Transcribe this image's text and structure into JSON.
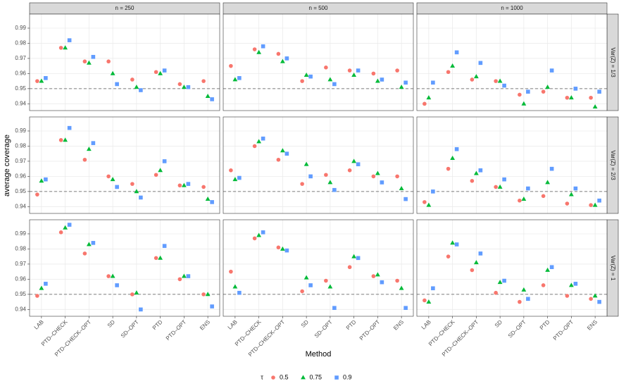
{
  "chart_data": {
    "type": "scatter",
    "xlabel": "Method",
    "ylabel": "average coverage",
    "legend_title": "τ",
    "categories": [
      "LAB",
      "PTD–CHECK",
      "PTD–CHECK–OPT",
      "SD",
      "SD–OPT",
      "PTD",
      "PTD–OPT",
      "ENS"
    ],
    "series": [
      {
        "name": "0.5",
        "color": "#F8766D",
        "marker": "circle"
      },
      {
        "name": "0.75",
        "color": "#00BA38",
        "marker": "triangle"
      },
      {
        "name": "0.9",
        "color": "#619CFF",
        "marker": "square"
      }
    ],
    "ylim": [
      0.9355,
      0.9993
    ],
    "yticks": [
      0.94,
      0.95,
      0.96,
      0.97,
      0.98,
      0.99
    ],
    "hline": 0.95,
    "grid": true,
    "columns": [
      "n = 250",
      "n = 500",
      "n = 1000"
    ],
    "rows": [
      {
        "label": "Var(Z) = 1/3",
        "panels": [
          {
            "series": [
              {
                "values": [
                  0.955,
                  0.977,
                  0.968,
                  0.968,
                  0.956,
                  0.961,
                  0.953,
                  0.955
                ]
              },
              {
                "values": [
                  0.955,
                  0.977,
                  0.967,
                  0.96,
                  0.951,
                  0.96,
                  0.951,
                  0.945
                ]
              },
              {
                "values": [
                  0.957,
                  0.982,
                  0.971,
                  0.953,
                  0.949,
                  0.962,
                  0.951,
                  0.943
                ]
              }
            ]
          },
          {
            "series": [
              {
                "values": [
                  0.965,
                  0.976,
                  0.973,
                  0.955,
                  0.964,
                  0.962,
                  0.96,
                  0.962
                ]
              },
              {
                "values": [
                  0.956,
                  0.974,
                  0.968,
                  0.959,
                  0.956,
                  0.959,
                  0.955,
                  0.951
                ]
              },
              {
                "values": [
                  0.957,
                  0.978,
                  0.97,
                  0.958,
                  0.953,
                  0.962,
                  0.956,
                  0.954
                ]
              }
            ]
          },
          {
            "series": [
              {
                "values": [
                  0.94,
                  0.961,
                  0.956,
                  0.955,
                  0.946,
                  0.948,
                  0.944,
                  0.944
                ]
              },
              {
                "values": [
                  0.944,
                  0.965,
                  0.958,
                  0.955,
                  0.94,
                  0.951,
                  0.944,
                  0.938
                ]
              },
              {
                "values": [
                  0.954,
                  0.974,
                  0.967,
                  0.952,
                  0.948,
                  0.962,
                  0.95,
                  0.948
                ]
              }
            ]
          }
        ]
      },
      {
        "label": "Var(Z) = 2/3",
        "panels": [
          {
            "series": [
              {
                "values": [
                  0.948,
                  0.984,
                  0.971,
                  0.96,
                  0.955,
                  0.961,
                  0.954,
                  0.953
                ]
              },
              {
                "values": [
                  0.957,
                  0.984,
                  0.978,
                  0.958,
                  0.95,
                  0.964,
                  0.954,
                  0.945
                ]
              },
              {
                "values": [
                  0.958,
                  0.992,
                  0.982,
                  0.953,
                  0.946,
                  0.97,
                  0.955,
                  0.943
                ]
              }
            ]
          },
          {
            "series": [
              {
                "values": [
                  0.964,
                  0.98,
                  0.971,
                  0.955,
                  0.961,
                  0.964,
                  0.96,
                  0.96
                ]
              },
              {
                "values": [
                  0.958,
                  0.983,
                  0.977,
                  0.968,
                  0.956,
                  0.97,
                  0.962,
                  0.952
                ]
              },
              {
                "values": [
                  0.959,
                  0.985,
                  0.975,
                  0.96,
                  0.951,
                  0.968,
                  0.956,
                  0.945
                ]
              }
            ]
          },
          {
            "series": [
              {
                "values": [
                  0.943,
                  0.965,
                  0.957,
                  0.953,
                  0.944,
                  0.947,
                  0.942,
                  0.941
                ]
              },
              {
                "values": [
                  0.941,
                  0.972,
                  0.962,
                  0.953,
                  0.945,
                  0.956,
                  0.948,
                  0.941
                ]
              },
              {
                "values": [
                  0.95,
                  0.978,
                  0.964,
                  0.958,
                  0.952,
                  0.965,
                  0.952,
                  0.944
                ]
              }
            ]
          }
        ]
      },
      {
        "label": "Var(Z) = 1",
        "panels": [
          {
            "series": [
              {
                "values": [
                  0.949,
                  0.991,
                  0.977,
                  0.962,
                  0.95,
                  0.974,
                  0.96,
                  0.95
                ]
              },
              {
                "values": [
                  0.954,
                  0.994,
                  0.983,
                  0.962,
                  0.951,
                  0.974,
                  0.962,
                  0.95
                ]
              },
              {
                "values": [
                  0.957,
                  0.996,
                  0.984,
                  0.956,
                  0.94,
                  0.982,
                  0.962,
                  0.942
                ]
              }
            ]
          },
          {
            "series": [
              {
                "values": [
                  0.965,
                  0.987,
                  0.981,
                  0.952,
                  0.959,
                  0.968,
                  0.962,
                  0.959
                ]
              },
              {
                "values": [
                  0.955,
                  0.989,
                  0.98,
                  0.961,
                  0.955,
                  0.975,
                  0.963,
                  0.954
                ]
              },
              {
                "values": [
                  0.951,
                  0.991,
                  0.979,
                  0.956,
                  0.941,
                  0.974,
                  0.958,
                  0.941
                ]
              }
            ]
          },
          {
            "series": [
              {
                "values": [
                  0.946,
                  0.975,
                  0.966,
                  0.951,
                  0.945,
                  0.956,
                  0.949,
                  0.947
                ]
              },
              {
                "values": [
                  0.945,
                  0.984,
                  0.971,
                  0.958,
                  0.953,
                  0.966,
                  0.956,
                  0.949
                ]
              },
              {
                "values": [
                  0.954,
                  0.983,
                  0.977,
                  0.959,
                  0.947,
                  0.968,
                  0.957,
                  0.945
                ]
              }
            ]
          }
        ]
      }
    ]
  }
}
